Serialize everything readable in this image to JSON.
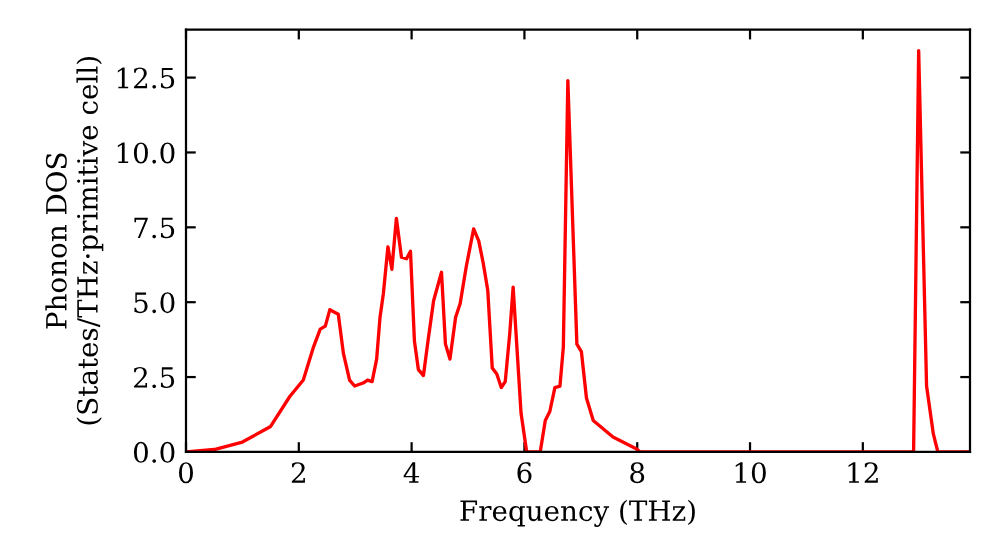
{
  "chart_data": {
    "type": "line",
    "xlabel": "Frequency (THz)",
    "ylabel": "Phonon DOS\n(States/THz·primitive cell)",
    "xlim": [
      0,
      13.9
    ],
    "ylim": [
      0,
      14.1
    ],
    "xticks": [
      0,
      2,
      4,
      6,
      8,
      10,
      12
    ],
    "yticks": [
      {
        "value": 0,
        "label": "0.0"
      },
      {
        "value": 2.5,
        "label": "2.5"
      },
      {
        "value": 5,
        "label": "5.0"
      },
      {
        "value": 7.5,
        "label": "7.5"
      },
      {
        "value": 10,
        "label": "10.0"
      },
      {
        "value": 12.5,
        "label": "12.5"
      }
    ],
    "grid": false,
    "marker": "none",
    "line_style": "solid",
    "series": [
      {
        "color": "#ff0000",
        "x": [
          0,
          0.5,
          1,
          1.5,
          1.84,
          2.08,
          2.26,
          2.38,
          2.47,
          2.55,
          2.7,
          2.79,
          2.9,
          2.99,
          3.14,
          3.22,
          3.3,
          3.38,
          3.44,
          3.5,
          3.58,
          3.65,
          3.73,
          3.82,
          3.91,
          3.98,
          4.05,
          4.12,
          4.21,
          4.29,
          4.39,
          4.53,
          4.6,
          4.68,
          4.78,
          4.86,
          4.97,
          5.1,
          5.19,
          5.27,
          5.35,
          5.43,
          5.51,
          5.59,
          5.66,
          5.74,
          5.8,
          5.86,
          5.94,
          6.04,
          6.28,
          6.37,
          6.45,
          6.54,
          6.63,
          6.69,
          6.77,
          6.93,
          7.01,
          7.1,
          7.22,
          7.57,
          7.99,
          8.05,
          12.9,
          12.99,
          13.13,
          13.25,
          13.33,
          13.9
        ],
        "values": [
          0,
          0.08,
          0.33,
          0.85,
          1.85,
          2.4,
          3.5,
          4.1,
          4.2,
          4.75,
          4.6,
          3.3,
          2.4,
          2.2,
          2.3,
          2.4,
          2.35,
          3.1,
          4.5,
          5.3,
          6.85,
          6.1,
          7.8,
          6.5,
          6.45,
          6.7,
          3.7,
          2.75,
          2.55,
          3.7,
          5.05,
          6.0,
          3.6,
          3.1,
          4.5,
          4.95,
          6.2,
          7.45,
          7.05,
          6.3,
          5.4,
          2.8,
          2.6,
          2.15,
          2.35,
          3.95,
          5.5,
          3.7,
          1.3,
          0,
          0,
          1.05,
          1.35,
          2.15,
          2.2,
          3.5,
          12.4,
          3.6,
          3.35,
          1.8,
          1.05,
          0.5,
          0.1,
          0,
          0,
          13.4,
          2.2,
          0.6,
          0,
          0
        ]
      }
    ]
  }
}
